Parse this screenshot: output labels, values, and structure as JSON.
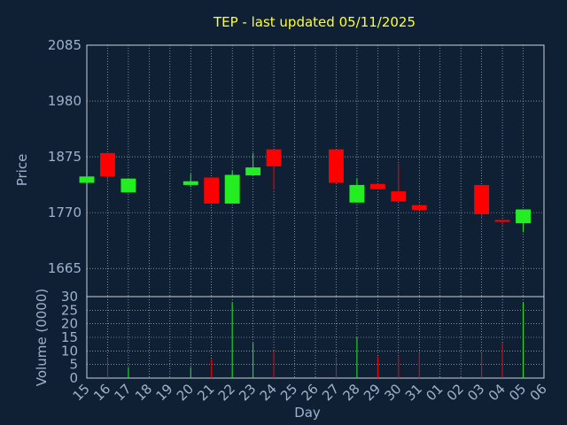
{
  "chart_data": {
    "type": "candlestick",
    "title": "TEP - last updated 05/11/2025",
    "xlabel": "Day",
    "ylabel_price": "Price",
    "ylabel_volume": "Volume (0000)",
    "price_ylim": [
      1612,
      2085
    ],
    "price_ticks": [
      "2085",
      "1980",
      "1875",
      "1770",
      "1665"
    ],
    "volume_ylim": [
      0,
      30
    ],
    "volume_ticks": [
      "0",
      "5",
      "10",
      "15",
      "20",
      "25",
      "30"
    ],
    "x_labels": [
      "15",
      "16",
      "17",
      "18",
      "19",
      "20",
      "21",
      "22",
      "23",
      "24",
      "25",
      "26",
      "27",
      "28",
      "29",
      "30",
      "31",
      "01",
      "02",
      "03",
      "04",
      "05",
      "06"
    ],
    "grid": true,
    "colors": {
      "background": "#0f2035",
      "up": "#22ee22",
      "down": "#ff0000",
      "grid": "#c8d2dc",
      "title": "#ffff33",
      "axis_text": "#9cb3cc"
    },
    "candles": [
      {
        "x": "15",
        "open": 1826,
        "close": 1838,
        "high": 1838,
        "low": 1826
      },
      {
        "x": "16",
        "open": 1882,
        "close": 1838,
        "high": 1882,
        "low": 1831
      },
      {
        "x": "17",
        "open": 1808,
        "close": 1834,
        "high": 1834,
        "low": 1808
      },
      {
        "x": "20",
        "open": 1822,
        "close": 1829,
        "high": 1843,
        "low": 1818
      },
      {
        "x": "21",
        "open": 1836,
        "close": 1787,
        "high": 1836,
        "low": 1787
      },
      {
        "x": "22",
        "open": 1787,
        "close": 1841,
        "high": 1849,
        "low": 1787
      },
      {
        "x": "23",
        "open": 1840,
        "close": 1855,
        "high": 1882,
        "low": 1840
      },
      {
        "x": "24",
        "open": 1889,
        "close": 1857,
        "high": 1889,
        "low": 1813
      },
      {
        "x": "27",
        "open": 1889,
        "close": 1826,
        "high": 1889,
        "low": 1826
      },
      {
        "x": "28",
        "open": 1789,
        "close": 1822,
        "high": 1834,
        "low": 1789
      },
      {
        "x": "29",
        "open": 1824,
        "close": 1814,
        "high": 1824,
        "low": 1814
      },
      {
        "x": "30",
        "open": 1810,
        "close": 1791,
        "high": 1862,
        "low": 1791
      },
      {
        "x": "31",
        "open": 1784,
        "close": 1775,
        "high": 1784,
        "low": 1775
      },
      {
        "x": "03",
        "open": 1822,
        "close": 1767,
        "high": 1822,
        "low": 1758
      },
      {
        "x": "04",
        "open": 1756,
        "close": 1754,
        "high": 1756,
        "low": 1746
      },
      {
        "x": "05",
        "open": 1750,
        "close": 1776,
        "high": 1776,
        "low": 1733
      }
    ],
    "volumes": [
      {
        "x": "16",
        "value": 7,
        "dir": "down"
      },
      {
        "x": "17",
        "value": 4,
        "dir": "up"
      },
      {
        "x": "20",
        "value": 4,
        "dir": "up"
      },
      {
        "x": "21",
        "value": 7,
        "dir": "down"
      },
      {
        "x": "22",
        "value": 28,
        "dir": "up"
      },
      {
        "x": "23",
        "value": 13,
        "dir": "up"
      },
      {
        "x": "24",
        "value": 10,
        "dir": "down"
      },
      {
        "x": "27",
        "value": 7,
        "dir": "down"
      },
      {
        "x": "28",
        "value": 15,
        "dir": "up"
      },
      {
        "x": "29",
        "value": 8,
        "dir": "down"
      },
      {
        "x": "30",
        "value": 8,
        "dir": "down"
      },
      {
        "x": "31",
        "value": 9,
        "dir": "down"
      },
      {
        "x": "03",
        "value": 9,
        "dir": "down"
      },
      {
        "x": "04",
        "value": 13,
        "dir": "down"
      },
      {
        "x": "05",
        "value": 28,
        "dir": "up"
      }
    ]
  }
}
